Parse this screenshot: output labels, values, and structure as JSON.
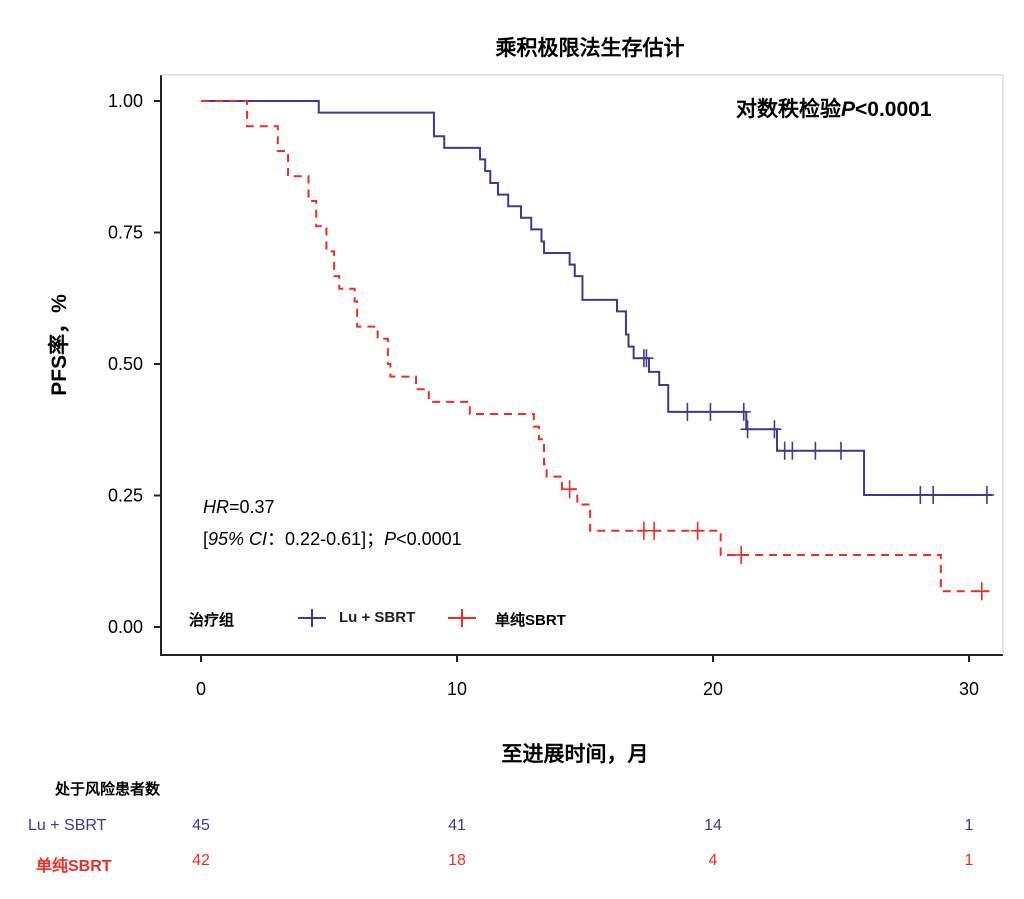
{
  "chart_data": {
    "type": "line",
    "subtype": "kaplan-meier",
    "title": "乘积极限法生存估计",
    "xlabel": "至进展时间，月",
    "ylabel": "PFS率，%",
    "xlim": [
      -1.5,
      31.5
    ],
    "ylim": [
      -0.1,
      1.1
    ],
    "xticks": [
      0,
      10,
      20,
      30
    ],
    "yticks": [
      "0.00",
      "0.25",
      "0.50",
      "0.75",
      "1.00"
    ],
    "logrank_prefix": "对数秩检验",
    "logrank_p_label": "P",
    "logrank_p_value": "<0.0001",
    "annotation": {
      "hr_label": "HR",
      "hr_value": "=0.37",
      "ci_open": "[",
      "ci_label": "95% CI",
      "ci_value": "：0.22-0.61]；",
      "p_label": "P",
      "p_value": "<0.0001"
    },
    "legend_title": "治疗组",
    "legend_placement": "bottom-left",
    "series": [
      {
        "name": "Lu + SBRT",
        "color": "#3d3a94",
        "style": "solid",
        "end": 30.9,
        "steps": [
          [
            0,
            1.0
          ],
          [
            4.6,
            0.978
          ],
          [
            9.1,
            0.933
          ],
          [
            9.5,
            0.911
          ],
          [
            10.9,
            0.889
          ],
          [
            11.1,
            0.867
          ],
          [
            11.3,
            0.844
          ],
          [
            11.6,
            0.822
          ],
          [
            12.0,
            0.8
          ],
          [
            12.5,
            0.778
          ],
          [
            12.9,
            0.756
          ],
          [
            13.3,
            0.733
          ],
          [
            13.4,
            0.711
          ],
          [
            14.4,
            0.689
          ],
          [
            14.6,
            0.667
          ],
          [
            14.9,
            0.622
          ],
          [
            16.25,
            0.6
          ],
          [
            16.6,
            0.556
          ],
          [
            16.7,
            0.533
          ],
          [
            16.9,
            0.511
          ],
          [
            17.5,
            0.485
          ],
          [
            17.9,
            0.46
          ],
          [
            18.25,
            0.409
          ],
          [
            21.3,
            0.376
          ],
          [
            22.5,
            0.335
          ],
          [
            25.9,
            0.251
          ]
        ],
        "censored": [
          17.3,
          17.4,
          19.0,
          19.9,
          21.2,
          21.35,
          22.4,
          22.8,
          23.1,
          24.0,
          25.0,
          28.1,
          28.6,
          30.7
        ]
      },
      {
        "name": "单纯SBRT",
        "color": "#ef2b24",
        "style": "dashed",
        "end": 30.8,
        "steps": [
          [
            0,
            1.0
          ],
          [
            1.8,
            0.952
          ],
          [
            3.0,
            0.905
          ],
          [
            3.4,
            0.857
          ],
          [
            4.2,
            0.81
          ],
          [
            4.5,
            0.762
          ],
          [
            4.9,
            0.714
          ],
          [
            5.2,
            0.667
          ],
          [
            5.4,
            0.643
          ],
          [
            6.0,
            0.619
          ],
          [
            6.1,
            0.571
          ],
          [
            6.9,
            0.548
          ],
          [
            7.3,
            0.5
          ],
          [
            7.4,
            0.476
          ],
          [
            8.4,
            0.452
          ],
          [
            8.9,
            0.428
          ],
          [
            10.5,
            0.405
          ],
          [
            13.0,
            0.381
          ],
          [
            13.2,
            0.357
          ],
          [
            13.4,
            0.309
          ],
          [
            13.5,
            0.286
          ],
          [
            14.1,
            0.262
          ],
          [
            14.7,
            0.233
          ],
          [
            15.2,
            0.183
          ],
          [
            20.3,
            0.137
          ],
          [
            28.9,
            0.068
          ]
        ],
        "censored": [
          14.4,
          17.3,
          17.7,
          19.4,
          21.1,
          30.5
        ]
      }
    ],
    "risk_table": {
      "title": "处于风险患者数",
      "times": [
        0,
        10,
        20,
        30
      ],
      "rows": [
        {
          "label": "Lu + SBRT",
          "values": [
            "45",
            "41",
            "14",
            "1"
          ]
        },
        {
          "label": "单纯SBRT",
          "values": [
            "42",
            "18",
            "4",
            "1"
          ]
        }
      ]
    }
  }
}
